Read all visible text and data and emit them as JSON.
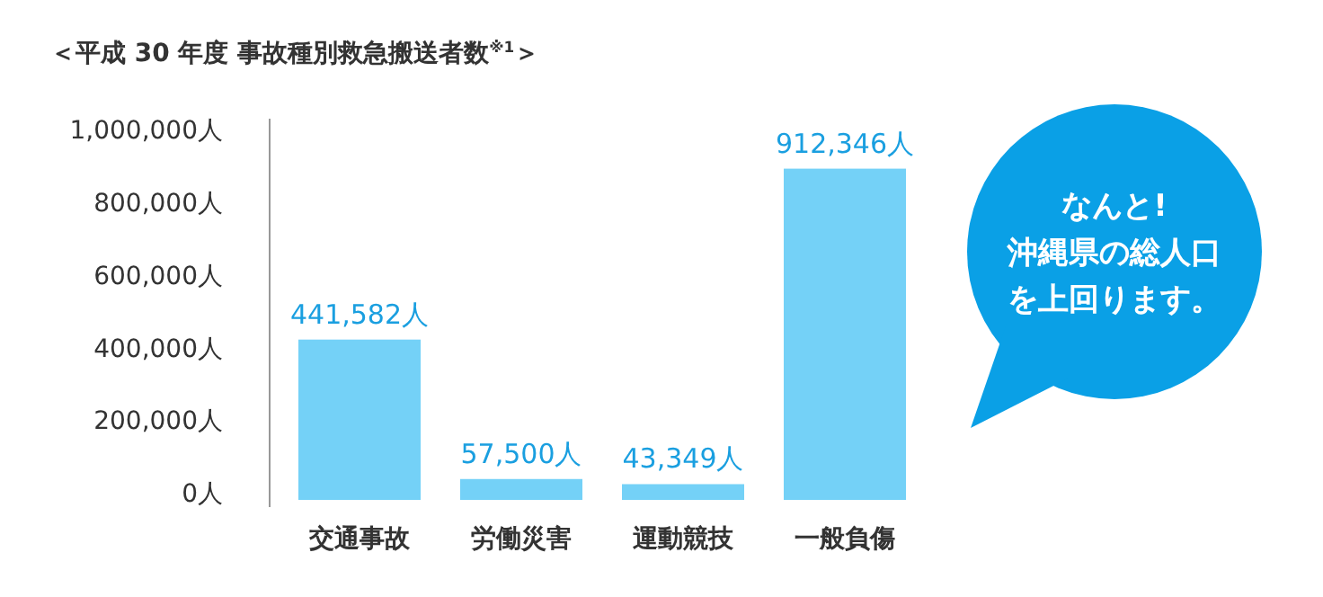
{
  "chart_data": {
    "type": "bar",
    "title": "＜平成 30 年度 事故種別救急搬送者数$^{※1}$＞",
    "categories": [
      "交通事故",
      "労働災害",
      "運動競技",
      "一般負傷"
    ],
    "values": [
      441582,
      57500,
      43349,
      912346
    ],
    "value_labels": [
      "441,582人",
      "57,500人",
      "43,349人",
      "912,346人"
    ],
    "color": "#74d1f7",
    "ylim": [
      0,
      1050000
    ],
    "yticks": [
      {
        "value": 0,
        "label": "0人"
      },
      {
        "value": 200000,
        "label": "200,000人"
      },
      {
        "value": 400000,
        "label": "400,000人"
      },
      {
        "value": 600000,
        "label": "600,000人"
      },
      {
        "value": 800000,
        "label": "800,000人"
      },
      {
        "value": 1000000,
        "label": "1,000,000人"
      }
    ],
    "grid": false,
    "annotations": [
      "なんと!\n沖縄県の総人口を上回ります。"
    ]
  }
}
